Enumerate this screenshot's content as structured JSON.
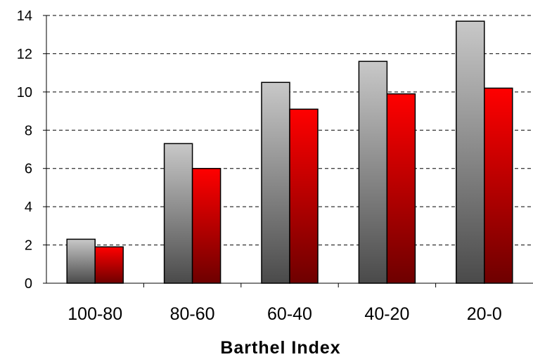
{
  "chart_data": {
    "type": "bar",
    "title": "",
    "xlabel": "Barthel Index",
    "ylabel": "",
    "categories": [
      "100-80",
      "80-60",
      "60-40",
      "40-20",
      "20-0"
    ],
    "series": [
      {
        "color": "#a9a9a9",
        "values": [
          2.3,
          7.3,
          10.5,
          11.6,
          13.7
        ]
      },
      {
        "color": "#ff0000",
        "values": [
          1.9,
          6.0,
          9.1,
          9.9,
          10.2
        ]
      }
    ],
    "ylim": [
      0,
      14
    ],
    "yticks": [
      "0",
      "2",
      "4",
      "6",
      "8",
      "10",
      "12",
      "14"
    ],
    "grid": true,
    "legend": "none"
  }
}
